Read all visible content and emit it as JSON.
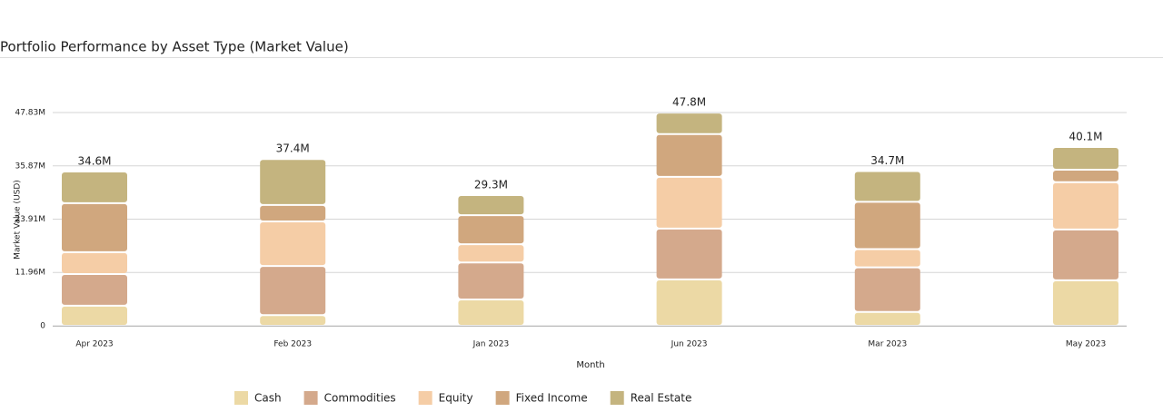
{
  "chart_data": {
    "type": "stacked_bar",
    "title": "Portfolio Performance by Asset Type (Market Value)",
    "x_label": "Month",
    "y_label": "Market Value (USD)",
    "categories": [
      "Apr 2023",
      "Feb 2023",
      "Jan 2023",
      "Jun 2023",
      "Mar 2023",
      "May 2023"
    ],
    "series": [
      {
        "name": "Cash",
        "color": "#ecd9a5",
        "values": [
          4.5,
          2.4,
          5.9,
          10.4,
          3.1,
          10.2
        ]
      },
      {
        "name": "Commodities",
        "color": "#d4a98c",
        "values": [
          7.1,
          11.0,
          8.3,
          11.4,
          10.0,
          11.4
        ]
      },
      {
        "name": "Equity",
        "color": "#f5cda6",
        "values": [
          4.9,
          10.0,
          4.1,
          11.6,
          4.1,
          10.6
        ]
      },
      {
        "name": "Fixed Income",
        "color": "#d0a77e",
        "values": [
          11.0,
          3.7,
          6.5,
          9.6,
          10.6,
          2.8
        ]
      },
      {
        "name": "Real Estate",
        "color": "#c4b47f",
        "values": [
          7.1,
          10.3,
          4.5,
          4.8,
          6.9,
          5.1
        ]
      }
    ],
    "totals": {
      "values": [
        34.6,
        37.4,
        29.3,
        47.8,
        34.7,
        40.1
      ],
      "value_labels": [
        "34.6M",
        "37.4M",
        "29.3M",
        "47.8M",
        "34.7M",
        "40.1M"
      ]
    },
    "ylim": [
      0,
      47.83
    ],
    "yticks": [
      0,
      {
        "value": 11.96,
        "label": "11.96M"
      },
      {
        "value": 23.91,
        "label": "23.91M"
      },
      {
        "value": 35.87,
        "label": "35.87M"
      },
      {
        "value": 47.83,
        "label": "47.83M"
      }
    ],
    "grid": true,
    "legend": "bottom"
  }
}
